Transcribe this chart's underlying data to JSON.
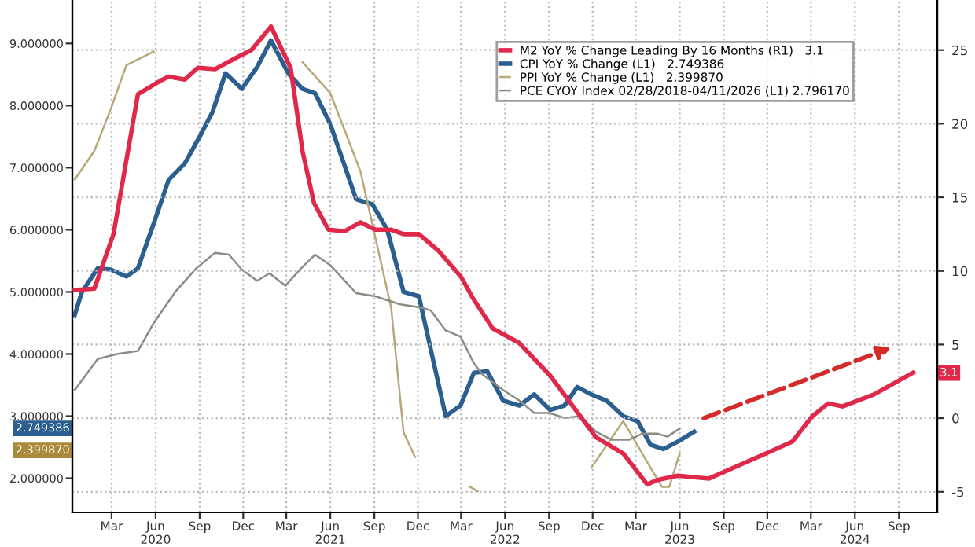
{
  "chart_data": {
    "type": "line",
    "xlim": [
      "2019-12-10",
      "2024-11-20"
    ],
    "xticks": [
      {
        "value": "2020-03-01",
        "label": "Mar"
      },
      {
        "value": "2020-06-01",
        "label": "Jun\n2020"
      },
      {
        "value": "2020-09-01",
        "label": "Sep"
      },
      {
        "value": "2020-12-01",
        "label": "Dec"
      },
      {
        "value": "2021-03-01",
        "label": "Mar"
      },
      {
        "value": "2021-06-01",
        "label": "Jun\n2021"
      },
      {
        "value": "2021-09-01",
        "label": "Sep"
      },
      {
        "value": "2021-12-01",
        "label": "Dec"
      },
      {
        "value": "2022-03-01",
        "label": "Mar"
      },
      {
        "value": "2022-06-01",
        "label": "Jun\n2022"
      },
      {
        "value": "2022-09-01",
        "label": "Sep"
      },
      {
        "value": "2022-12-01",
        "label": "Dec"
      },
      {
        "value": "2023-03-01",
        "label": "Mar"
      },
      {
        "value": "2023-06-01",
        "label": "Jun\n2023"
      },
      {
        "value": "2023-09-01",
        "label": "Sep"
      },
      {
        "value": "2023-12-01",
        "label": "Dec"
      },
      {
        "value": "2024-03-01",
        "label": "Mar"
      },
      {
        "value": "2024-06-01",
        "label": "Jun\n2024"
      },
      {
        "value": "2024-09-01",
        "label": "Sep"
      }
    ],
    "ylim": [
      1.45,
      9.7
    ],
    "yticks": [
      {
        "value": 2,
        "label": "2.000000"
      },
      {
        "value": 3,
        "label": "3.000000"
      },
      {
        "value": 4,
        "label": "4.000000"
      },
      {
        "value": 5,
        "label": "5.000000"
      },
      {
        "value": 6,
        "label": "6.000000"
      },
      {
        "value": 7,
        "label": "7.000000"
      },
      {
        "value": 8,
        "label": "8.000000"
      },
      {
        "value": 9,
        "label": "9.000000"
      }
    ],
    "y2lim": [
      -6.4,
      28.4
    ],
    "y2ticks": [
      -5,
      0,
      5,
      10,
      15,
      20,
      25
    ],
    "grid": true,
    "legend": "top right",
    "series": [
      {
        "name": "M2 YoY % Change Leading By 16 Months (R1)   3.1",
        "color": "#e0284a",
        "axis": "y2",
        "x": [
          "2019-12-15",
          "2020-01-25",
          "2020-03-05",
          "2020-04-25",
          "2020-06-10",
          "2020-06-28",
          "2020-08-01",
          "2020-08-28",
          "2020-10-03",
          "2020-11-18",
          "2020-12-18",
          "2021-01-28",
          "2021-03-10",
          "2021-04-04",
          "2021-04-28",
          "2021-05-28",
          "2021-07-01",
          "2021-08-03",
          "2021-09-03",
          "2021-10-06",
          "2021-11-01",
          "2021-12-03",
          "2022-01-12",
          "2022-03-01",
          "2022-03-25",
          "2022-05-06",
          "2022-07-01",
          "2022-09-03",
          "2022-10-28",
          "2022-12-08",
          "2023-02-03",
          "2023-03-25",
          "2023-04-15",
          "2023-05-28",
          "2023-08-01",
          "2023-10-03",
          "2023-11-28",
          "2024-01-22",
          "2024-03-03",
          "2024-04-06",
          "2024-05-06",
          "2024-07-10",
          "2024-10-01"
        ],
        "values": [
          8.7,
          8.8,
          12.5,
          22.0,
          22.9,
          23.2,
          23.0,
          23.8,
          23.7,
          24.5,
          25.0,
          26.6,
          23.8,
          18.1,
          14.6,
          12.8,
          12.7,
          13.3,
          12.8,
          12.8,
          12.5,
          12.5,
          11.4,
          9.6,
          8.2,
          6.1,
          5.1,
          2.9,
          0.5,
          -1.3,
          -2.4,
          -4.5,
          -4.2,
          -3.9,
          -4.1,
          -3.2,
          -2.4,
          -1.6,
          0.1,
          1.0,
          0.8,
          1.6,
          3.1
        ]
      },
      {
        "name": "CPI YoY % Change (L1)   2.749386",
        "color": "#2a5f8f",
        "x": [
          "2019-12-15",
          "2019-12-30",
          "2020-02-01",
          "2020-02-28",
          "2020-04-01",
          "2020-04-25",
          "2020-05-28",
          "2020-06-28",
          "2020-08-01",
          "2020-09-01",
          "2020-09-28",
          "2020-10-25",
          "2020-11-28",
          "2020-12-30",
          "2021-01-28",
          "2021-03-05",
          "2021-04-04",
          "2021-04-30",
          "2021-06-01",
          "2021-07-25",
          "2021-08-28",
          "2021-09-28",
          "2021-11-01",
          "2021-12-03",
          "2022-01-28",
          "2022-02-28",
          "2022-03-28",
          "2022-04-25",
          "2022-05-28",
          "2022-07-01",
          "2022-08-01",
          "2022-09-03",
          "2022-10-03",
          "2022-10-30",
          "2022-11-28",
          "2022-12-30",
          "2023-02-03",
          "2023-03-05",
          "2023-04-01",
          "2023-04-28",
          "2023-05-28",
          "2023-07-01"
        ],
        "values": [
          4.63,
          5.0,
          5.38,
          5.36,
          5.25,
          5.38,
          6.1,
          6.8,
          7.07,
          7.5,
          7.9,
          8.52,
          8.27,
          8.62,
          9.05,
          8.52,
          8.27,
          8.2,
          7.7,
          6.49,
          6.41,
          6.0,
          5.0,
          4.93,
          3.0,
          3.17,
          3.7,
          3.72,
          3.25,
          3.17,
          3.35,
          3.1,
          3.17,
          3.47,
          3.35,
          3.25,
          3.0,
          2.92,
          2.54,
          2.47,
          2.59,
          2.75
        ]
      },
      {
        "name": "PPI YoY % Change (L1)   2.399870",
        "color": "#b8a878",
        "x": [
          "2019-12-15",
          "2020-01-25",
          "2020-02-28",
          "2020-04-01",
          "2020-05-28",
          "2020-06-25",
          "2020-10-15",
          "2021-02-27",
          "2021-04-04",
          "2021-06-01",
          "2021-08-03",
          "2021-10-06",
          "2021-11-01",
          "2021-11-25",
          "2021-12-20",
          "2022-02-01",
          "2022-03-08",
          "2022-03-18",
          "2022-04-05",
          "2022-04-15",
          "2022-07-01",
          "2022-09-20",
          "2022-11-28",
          "2023-02-03",
          "2023-04-01",
          "2023-04-25",
          "2023-05-10",
          "2023-06-01"
        ],
        "values": [
          6.81,
          7.27,
          7.94,
          8.65,
          8.87,
          null,
          null,
          null,
          8.7,
          8.2,
          6.94,
          4.75,
          2.74,
          2.34,
          null,
          null,
          null,
          1.87,
          1.79,
          null,
          null,
          null,
          2.17,
          2.92,
          2.17,
          1.86,
          1.86,
          2.4
        ]
      },
      {
        "name": "PCE CYOY Index 02/28/2018-04/11/2026 (L1) 2.796170",
        "color": "#8c8c84",
        "x": [
          "2019-12-15",
          "2020-02-01",
          "2020-03-12",
          "2020-04-25",
          "2020-05-28",
          "2020-07-12",
          "2020-08-25",
          "2020-10-03",
          "2020-11-01",
          "2020-11-28",
          "2020-12-30",
          "2021-01-25",
          "2021-02-27",
          "2021-04-01",
          "2021-04-30",
          "2021-06-01",
          "2021-07-25",
          "2021-09-03",
          "2021-10-25",
          "2021-12-08",
          "2021-12-28",
          "2022-01-28",
          "2022-02-28",
          "2022-03-28",
          "2022-04-15",
          "2022-05-28",
          "2022-07-01",
          "2022-08-01",
          "2022-09-03",
          "2022-10-03",
          "2022-11-05",
          "2022-12-08",
          "2023-01-10",
          "2023-02-15",
          "2023-03-15",
          "2023-04-15",
          "2023-05-06",
          "2023-06-01"
        ],
        "values": [
          3.42,
          3.92,
          4.0,
          4.05,
          4.5,
          5.0,
          5.38,
          5.63,
          5.6,
          5.36,
          5.18,
          5.3,
          5.1,
          5.38,
          5.6,
          5.43,
          4.98,
          4.93,
          4.8,
          4.75,
          4.7,
          4.38,
          4.28,
          3.85,
          3.67,
          3.42,
          3.25,
          3.05,
          3.05,
          2.97,
          3.0,
          2.75,
          2.62,
          2.62,
          2.72,
          2.72,
          2.67,
          2.8
        ]
      }
    ],
    "annotations": [
      "2.749386",
      "2.399870",
      "3.1"
    ]
  }
}
